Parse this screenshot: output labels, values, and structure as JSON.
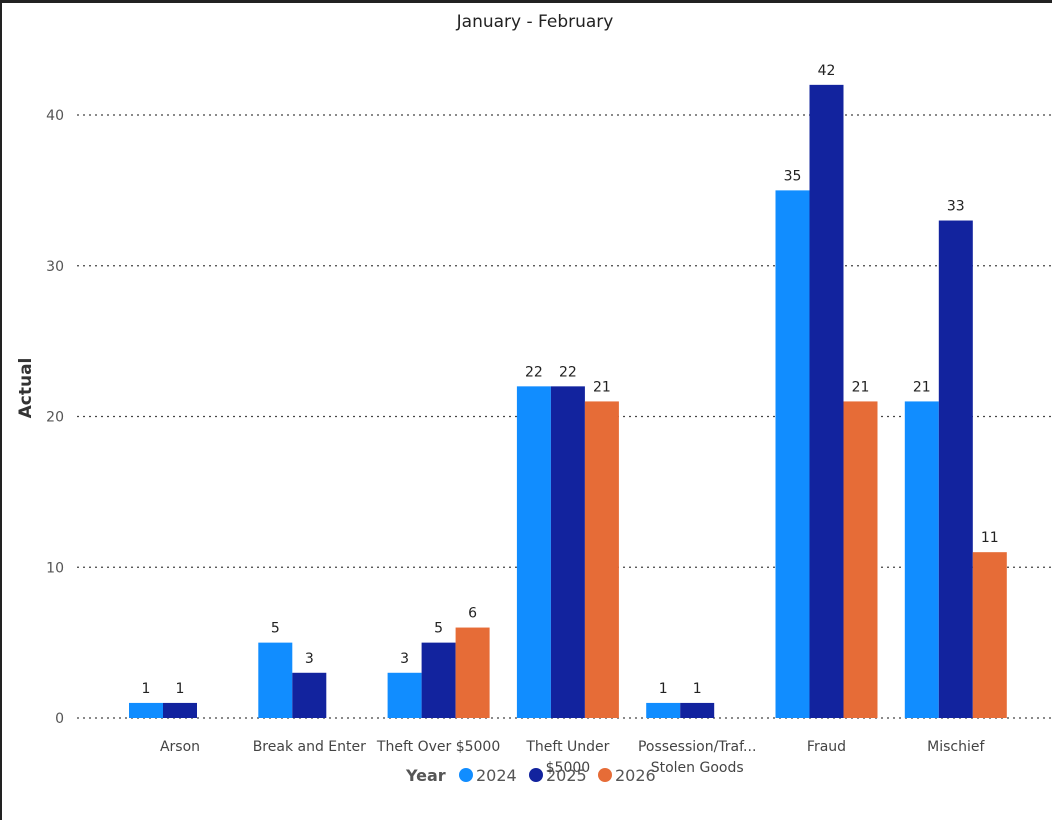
{
  "chart_data": {
    "type": "bar",
    "title": "January - February",
    "xlabel": "",
    "ylabel": "Actual",
    "ylim": [
      0,
      44
    ],
    "yticks": [
      0,
      10,
      20,
      30,
      40
    ],
    "grid": true,
    "legend": {
      "title": "Year",
      "position": "bottom"
    },
    "categories": [
      [
        "Arson"
      ],
      [
        "Break and Enter"
      ],
      [
        "Theft Over $5000"
      ],
      [
        "Theft Under",
        "$5000"
      ],
      [
        "Possession/Traf...",
        "Stolen Goods"
      ],
      [
        "Fraud"
      ],
      [
        "Mischief"
      ]
    ],
    "series": [
      {
        "name": "2024",
        "color": "#118DFF",
        "values": [
          1,
          5,
          3,
          22,
          1,
          35,
          21
        ]
      },
      {
        "name": "2025",
        "color": "#12239E",
        "values": [
          1,
          3,
          5,
          22,
          1,
          42,
          33
        ]
      },
      {
        "name": "2026",
        "color": "#E66C37",
        "values": [
          null,
          null,
          6,
          21,
          null,
          21,
          11
        ]
      }
    ]
  }
}
